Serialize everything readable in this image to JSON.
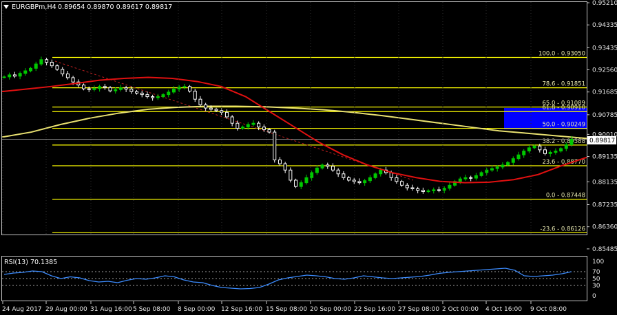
{
  "header": {
    "symbol": "EURGBPm,H4",
    "ohlc": "0.89654 0.89870 0.89617 0.89817",
    "arrow_icon": "triangle-down-icon"
  },
  "colors": {
    "background": "#000000",
    "bull_candle": "#00c800",
    "bear_candle": "#ffffff",
    "ma_fast": "#e01010",
    "ma_slow": "#e8e070",
    "fib_lines": "#ffff00",
    "zone": "#0000ff",
    "rsi": "#3c8cff",
    "current_price_line": "#808080"
  },
  "price_axis": {
    "labels": [
      "0.95210",
      "0.94335",
      "0.93435",
      "0.92560",
      "0.91685",
      "0.90785",
      "0.90010",
      "0.89135",
      "0.88135",
      "0.87235",
      "0.86360",
      "0.85485"
    ],
    "current_price": "0.89817"
  },
  "fibonacci": [
    {
      "label": "100.0 - 0.93050",
      "price": 0.9305
    },
    {
      "label": "78.6 - 0.91851",
      "price": 0.91851
    },
    {
      "label": "65.0 - 0.91089",
      "price": 0.91089
    },
    {
      "label": "61.8 - 0.90910",
      "price": 0.9091
    },
    {
      "label": "50.0 - 0.90249",
      "price": 0.90249
    },
    {
      "label": "38.2 - 0.89588",
      "price": 0.89588
    },
    {
      "label": "23.6 - 0.88770",
      "price": 0.8877
    },
    {
      "label": "0.0 - 0.87448",
      "price": 0.87448
    },
    {
      "label": "-23.6 - 0.86126",
      "price": 0.86126
    }
  ],
  "rsi": {
    "title": "RSI(13) 70.1385",
    "levels": [
      "100",
      "70",
      "50",
      "30",
      "0"
    ],
    "current": 70.1385
  },
  "time_axis": {
    "labels": [
      "24 Aug 2017",
      "29 Aug 00:00",
      "31 Aug 16:00",
      "5 Sep 08:00",
      "8 Sep 00:00",
      "12 Sep 16:00",
      "15 Sep 08:00",
      "20 Sep 00:00",
      "22 Sep 16:00",
      "27 Sep 08:00",
      "2 Oct 00:00",
      "4 Oct 16:00",
      "9 Oct 08:00"
    ]
  },
  "chart_data": {
    "type": "candlestick",
    "close_path": [
      0.9228,
      0.9236,
      0.9231,
      0.9242,
      0.9252,
      0.9262,
      0.9279,
      0.9296,
      0.9286,
      0.9272,
      0.9258,
      0.924,
      0.9225,
      0.9208,
      0.9196,
      0.9181,
      0.9178,
      0.9182,
      0.919,
      0.9186,
      0.9173,
      0.9178,
      0.9185,
      0.918,
      0.917,
      0.9164,
      0.9158,
      0.915,
      0.9146,
      0.915,
      0.9158,
      0.9168,
      0.918,
      0.9188,
      0.919,
      0.9172,
      0.914,
      0.9118,
      0.9105,
      0.91,
      0.9095,
      0.9088,
      0.907,
      0.9045,
      0.9025,
      0.903,
      0.904,
      0.9045,
      0.903,
      0.902,
      0.901,
      0.89,
      0.8885,
      0.886,
      0.882,
      0.8795,
      0.881,
      0.883,
      0.885,
      0.8868,
      0.888,
      0.8875,
      0.886,
      0.8845,
      0.883,
      0.882,
      0.8815,
      0.881,
      0.8818,
      0.883,
      0.8845,
      0.886,
      0.885,
      0.883,
      0.8815,
      0.88,
      0.879,
      0.8786,
      0.878,
      0.8775,
      0.8778,
      0.8782,
      0.878,
      0.8788,
      0.88,
      0.8815,
      0.8825,
      0.883,
      0.8828,
      0.8838,
      0.885,
      0.886,
      0.8866,
      0.8872,
      0.888,
      0.889,
      0.8905,
      0.892,
      0.8935,
      0.8948,
      0.8955,
      0.894,
      0.8925,
      0.893,
      0.8935,
      0.8945,
      0.896,
      0.8982
    ],
    "ma_fast_path": [
      0.917,
      0.918,
      0.919,
      0.9202,
      0.9215,
      0.9222,
      0.9226,
      0.9222,
      0.921,
      0.919,
      0.915,
      0.909,
      0.903,
      0.897,
      0.892,
      0.888,
      0.885,
      0.883,
      0.8815,
      0.881,
      0.8812,
      0.8822,
      0.8842,
      0.8878,
      0.891
    ],
    "ma_slow_path": [
      0.899,
      0.901,
      0.904,
      0.9065,
      0.9085,
      0.91,
      0.9108,
      0.9112,
      0.9112,
      0.911,
      0.9105,
      0.9098,
      0.9088,
      0.9075,
      0.906,
      0.9045,
      0.903,
      0.9015,
      0.9005,
      0.8995,
      0.8985
    ],
    "ylim": [
      0.85485,
      0.9521
    ],
    "rsi_path": [
      62,
      66,
      68,
      72,
      70,
      58,
      50,
      55,
      52,
      44,
      40,
      42,
      38,
      45,
      50,
      48,
      52,
      58,
      55,
      46,
      40,
      38,
      30,
      24,
      22,
      20,
      21,
      24,
      34,
      46,
      52,
      56,
      60,
      58,
      55,
      50,
      48,
      52,
      58,
      55,
      52,
      50,
      52,
      54,
      56,
      60,
      65,
      68,
      70,
      72,
      74,
      76,
      78,
      80,
      74,
      58,
      56,
      58,
      60,
      64,
      70
    ]
  }
}
